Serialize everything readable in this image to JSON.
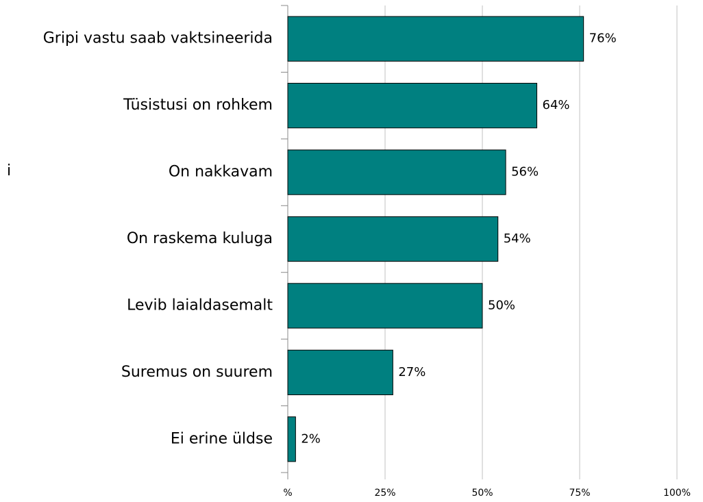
{
  "chart_data": {
    "type": "bar",
    "orientation": "horizontal",
    "annotations": [
      "i"
    ],
    "categories": [
      "Gripi vastu saab vaktsineerida",
      "Tüsistusi on rohkem",
      "On nakkavam",
      "On raskema kuluga",
      "Levib laialdasemalt",
      "Suremus on suurem",
      "Ei erine üldse"
    ],
    "values": [
      76,
      64,
      56,
      54,
      50,
      27,
      2
    ],
    "value_labels": [
      "76%",
      "64%",
      "56%",
      "54%",
      "50%",
      "27%",
      "2%"
    ],
    "color": "#008080",
    "xlim": [
      0,
      100
    ],
    "xticks": [
      {
        "value": 0,
        "label": "%"
      },
      {
        "value": 25,
        "label": "25%"
      },
      {
        "value": 50,
        "label": "50%"
      },
      {
        "value": 75,
        "label": "75%"
      },
      {
        "value": 100,
        "label": "100%"
      }
    ],
    "grid": true
  }
}
